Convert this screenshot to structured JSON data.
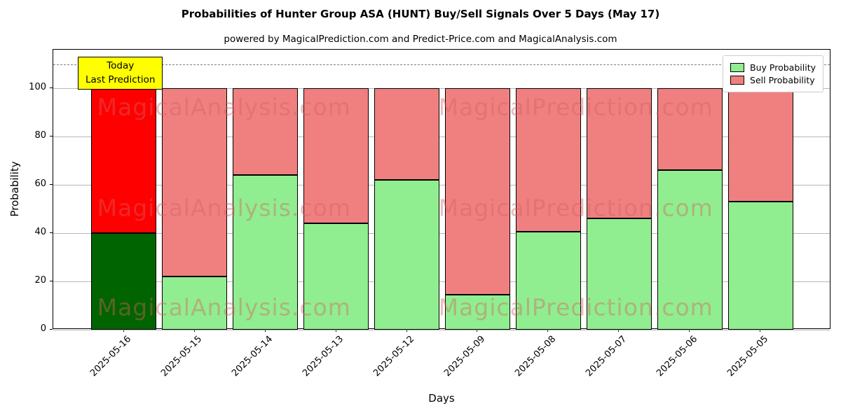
{
  "title": "Probabilities of Hunter Group ASA (HUNT) Buy/Sell Signals Over 5 Days (May 17)",
  "subtitle": "powered by MagicalPrediction.com and Predict-Price.com and MagicalAnalysis.com",
  "annotation": {
    "line1": "Today",
    "line2": "Last Prediction",
    "bg_color": "#ffff00"
  },
  "legend": {
    "items": [
      {
        "label": "Buy Probability",
        "color": "#90ee90"
      },
      {
        "label": "Sell Probability",
        "color": "#f08080"
      }
    ]
  },
  "watermarks": {
    "texts": [
      "MagicalAnalysis.com",
      "MagicalPrediction.com"
    ],
    "color": "#d86060",
    "opacity": 0.42
  },
  "chart_data": {
    "type": "bar",
    "stacked": true,
    "title": "Probabilities of Hunter Group ASA (HUNT) Buy/Sell Signals Over 5 Days (May 17)",
    "xlabel": "Days",
    "ylabel": "Probability",
    "categories": [
      "2025-05-16",
      "2025-05-15",
      "2025-05-14",
      "2025-05-13",
      "2025-05-12",
      "2025-05-09",
      "2025-05-08",
      "2025-05-07",
      "2025-05-06",
      "2025-05-05"
    ],
    "series": [
      {
        "name": "Buy Probability",
        "values": [
          40,
          22,
          64,
          44,
          62,
          14.5,
          40.5,
          46,
          66,
          53
        ]
      },
      {
        "name": "Sell Probability",
        "values": [
          60,
          78,
          36,
          56,
          38,
          85.5,
          59.5,
          54,
          34,
          47
        ]
      }
    ],
    "colors": {
      "today_buy": "#006400",
      "today_sell": "#ff0000",
      "buy": "#90ee90",
      "sell": "#f08080",
      "bar_edge": "#000000",
      "grid": "#b8b8b8",
      "dashed_line": "#7f7f7f"
    },
    "yticks": [
      0,
      20,
      40,
      60,
      80,
      100
    ],
    "ylim": [
      0,
      116
    ],
    "dashed_line_y": 110,
    "legend_position": "upper right",
    "grid": "horizontal"
  }
}
